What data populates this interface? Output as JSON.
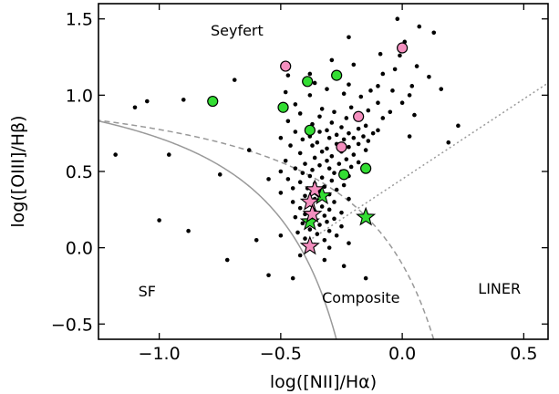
{
  "chart_data": {
    "type": "scatter",
    "title": "",
    "xlabel": "log([NII]/Hα)",
    "ylabel": "log([OIII]/Hβ)",
    "xlim": [
      -1.25,
      0.6
    ],
    "ylim": [
      -0.6,
      1.6
    ],
    "x_ticks": [
      {
        "value": -1.0,
        "label": "−1.0"
      },
      {
        "value": -0.5,
        "label": "−0.5"
      },
      {
        "value": 0.0,
        "label": "0.0"
      },
      {
        "value": 0.5,
        "label": "0.5"
      }
    ],
    "y_ticks": [
      {
        "value": -0.5,
        "label": "−0.5"
      },
      {
        "value": 0.0,
        "label": "0.0"
      },
      {
        "value": 0.5,
        "label": "0.5"
      },
      {
        "value": 1.0,
        "label": "1.0"
      },
      {
        "value": 1.5,
        "label": "1.5"
      }
    ],
    "grid": false,
    "annotations": [
      {
        "text": "Seyfert",
        "x": -0.68,
        "y": 1.39
      },
      {
        "text": "SF",
        "x": -1.05,
        "y": -0.32
      },
      {
        "text": "Composite",
        "x": -0.17,
        "y": -0.36
      },
      {
        "text": "LINER",
        "x": 0.4,
        "y": -0.3
      }
    ],
    "curves": [
      {
        "kind": "Kauffmann",
        "style": "solid",
        "color": "#999999"
      },
      {
        "kind": "Kewley",
        "style": "dashed",
        "color": "#999999"
      },
      {
        "kind": "Seyfert-LINER",
        "style": "dotted",
        "color": "#999999"
      }
    ],
    "series": [
      {
        "marker": "dot",
        "color": "#000000",
        "points": [
          [
            -0.02,
            1.5
          ],
          [
            0.07,
            1.45
          ],
          [
            0.13,
            1.41
          ],
          [
            -0.22,
            1.38
          ],
          [
            0.01,
            1.35
          ],
          [
            -0.09,
            1.27
          ],
          [
            -0.01,
            1.26
          ],
          [
            -0.29,
            1.23
          ],
          [
            -0.2,
            1.2
          ],
          [
            0.06,
            1.19
          ],
          [
            -0.03,
            1.17
          ],
          [
            -0.38,
            1.14
          ],
          [
            -0.08,
            1.14
          ],
          [
            -0.47,
            1.13
          ],
          [
            0.11,
            1.12
          ],
          [
            -0.69,
            1.1
          ],
          [
            -0.36,
            1.08
          ],
          [
            -0.22,
            1.07
          ],
          [
            -0.1,
            1.06
          ],
          [
            0.04,
            1.06
          ],
          [
            0.16,
            1.04
          ],
          [
            -0.31,
            1.04
          ],
          [
            -0.13,
            1.03
          ],
          [
            -0.04,
            1.03
          ],
          [
            -0.48,
            1.02
          ],
          [
            -0.24,
            1.01
          ],
          [
            0.03,
            1.0
          ],
          [
            -0.38,
            1.0
          ],
          [
            -0.17,
            0.99
          ],
          [
            -0.9,
            0.97
          ],
          [
            -1.05,
            0.96
          ],
          [
            -0.1,
            0.95
          ],
          [
            0.0,
            0.95
          ],
          [
            -0.44,
            0.94
          ],
          [
            -0.21,
            0.92
          ],
          [
            -0.33,
            0.91
          ],
          [
            -1.1,
            0.92
          ],
          [
            -0.14,
            0.9
          ],
          [
            -0.28,
            0.89
          ],
          [
            -0.05,
            0.89
          ],
          [
            -0.42,
            0.88
          ],
          [
            -0.19,
            0.87
          ],
          [
            0.05,
            0.87
          ],
          [
            -0.34,
            0.86
          ],
          [
            -0.23,
            0.85
          ],
          [
            -0.08,
            0.85
          ],
          [
            -0.47,
            0.83
          ],
          [
            -0.29,
            0.82
          ],
          [
            -0.37,
            0.81
          ],
          [
            -0.15,
            0.8
          ],
          [
            0.23,
            0.8
          ],
          [
            -0.25,
            0.79
          ],
          [
            -0.18,
            0.78
          ],
          [
            -0.31,
            0.77
          ],
          [
            -0.1,
            0.77
          ],
          [
            -0.44,
            0.76
          ],
          [
            -0.34,
            0.76
          ],
          [
            -0.22,
            0.75
          ],
          [
            -0.12,
            0.75
          ],
          [
            -0.27,
            0.74
          ],
          [
            -0.38,
            0.73
          ],
          [
            -0.16,
            0.73
          ],
          [
            0.03,
            0.73
          ],
          [
            -0.5,
            0.72
          ],
          [
            -0.3,
            0.72
          ],
          [
            -0.2,
            0.72
          ],
          [
            -0.41,
            0.71
          ],
          [
            -0.24,
            0.71
          ],
          [
            -0.14,
            0.7
          ],
          [
            -0.35,
            0.69
          ],
          [
            0.19,
            0.69
          ],
          [
            -0.27,
            0.68
          ],
          [
            -0.18,
            0.68
          ],
          [
            -0.46,
            0.67
          ],
          [
            -0.37,
            0.67
          ],
          [
            -0.22,
            0.66
          ],
          [
            -0.63,
            0.64
          ],
          [
            -0.31,
            0.65
          ],
          [
            -0.15,
            0.64
          ],
          [
            -0.33,
            0.63
          ],
          [
            -0.25,
            0.63
          ],
          [
            -0.42,
            0.62
          ],
          [
            -0.2,
            0.61
          ],
          [
            -1.18,
            0.61
          ],
          [
            -0.96,
            0.61
          ],
          [
            -0.29,
            0.6
          ],
          [
            -0.36,
            0.59
          ],
          [
            -0.23,
            0.58
          ],
          [
            -0.48,
            0.57
          ],
          [
            -0.31,
            0.57
          ],
          [
            -0.18,
            0.56
          ],
          [
            -0.4,
            0.55
          ],
          [
            -0.26,
            0.55
          ],
          [
            -0.34,
            0.54
          ],
          [
            -0.21,
            0.53
          ],
          [
            -0.44,
            0.52
          ],
          [
            -0.3,
            0.52
          ],
          [
            -0.37,
            0.51
          ],
          [
            -0.25,
            0.5
          ],
          [
            -0.5,
            0.5
          ],
          [
            -0.41,
            0.49
          ],
          [
            -0.28,
            0.49
          ],
          [
            -0.75,
            0.48
          ],
          [
            -0.38,
            0.47
          ],
          [
            -0.22,
            0.47
          ],
          [
            -0.33,
            0.46
          ],
          [
            -0.47,
            0.45
          ],
          [
            -0.55,
            0.45
          ],
          [
            -0.42,
            0.43
          ],
          [
            -0.29,
            0.44
          ],
          [
            -0.36,
            0.42
          ],
          [
            -0.24,
            0.41
          ],
          [
            -0.32,
            0.4
          ],
          [
            -0.45,
            0.39
          ],
          [
            -0.39,
            0.39
          ],
          [
            -0.27,
            0.38
          ],
          [
            -0.34,
            0.37
          ],
          [
            -0.5,
            0.36
          ],
          [
            -0.3,
            0.35
          ],
          [
            -0.4,
            0.34
          ],
          [
            -0.22,
            0.32
          ],
          [
            -0.36,
            0.32
          ],
          [
            -0.45,
            0.3
          ],
          [
            -0.28,
            0.3
          ],
          [
            -0.38,
            0.29
          ],
          [
            -0.33,
            0.27
          ],
          [
            -0.42,
            0.26
          ],
          [
            -0.3,
            0.25
          ],
          [
            -0.36,
            0.24
          ],
          [
            -0.25,
            0.23
          ],
          [
            -0.4,
            0.22
          ],
          [
            -0.32,
            0.21
          ],
          [
            -0.44,
            0.2
          ],
          [
            -0.28,
            0.19
          ],
          [
            -0.37,
            0.18
          ],
          [
            -0.31,
            0.17
          ],
          [
            -0.41,
            0.16
          ],
          [
            -0.34,
            0.15
          ],
          [
            -0.25,
            0.14
          ],
          [
            -0.38,
            0.12
          ],
          [
            -0.3,
            0.11
          ],
          [
            -0.43,
            0.1
          ],
          [
            -0.35,
            0.09
          ],
          [
            -0.27,
            0.08
          ],
          [
            -0.4,
            0.06
          ],
          [
            -0.32,
            0.05
          ],
          [
            -0.22,
            0.03
          ],
          [
            -0.36,
            0.02
          ],
          [
            -0.3,
            0.0
          ],
          [
            -0.5,
            0.08
          ],
          [
            -0.6,
            0.05
          ],
          [
            -0.88,
            0.11
          ],
          [
            -1.0,
            0.18
          ],
          [
            -0.42,
            -0.05
          ],
          [
            -0.32,
            -0.08
          ],
          [
            -0.72,
            -0.08
          ],
          [
            -0.24,
            -0.12
          ],
          [
            -0.55,
            -0.18
          ],
          [
            -0.45,
            -0.2
          ],
          [
            -0.15,
            -0.2
          ]
        ]
      },
      {
        "marker": "circle",
        "color": "#33dd33",
        "points": [
          [
            -0.78,
            0.96
          ],
          [
            -0.27,
            1.13
          ],
          [
            -0.39,
            1.09
          ],
          [
            -0.49,
            0.92
          ],
          [
            -0.38,
            0.77
          ],
          [
            -0.15,
            0.52
          ],
          [
            -0.24,
            0.48
          ]
        ]
      },
      {
        "marker": "circle",
        "color": "#f48fbf",
        "points": [
          [
            0.0,
            1.31
          ],
          [
            -0.48,
            1.19
          ],
          [
            -0.18,
            0.86
          ],
          [
            -0.25,
            0.66
          ]
        ]
      },
      {
        "marker": "star",
        "color": "#33dd33",
        "points": [
          [
            -0.15,
            0.2
          ],
          [
            -0.33,
            0.34
          ],
          [
            -0.38,
            0.17
          ]
        ]
      },
      {
        "marker": "star",
        "color": "#f48fbf",
        "points": [
          [
            -0.36,
            0.38
          ],
          [
            -0.38,
            0.3
          ],
          [
            -0.37,
            0.22
          ],
          [
            -0.38,
            0.01
          ]
        ]
      }
    ]
  }
}
